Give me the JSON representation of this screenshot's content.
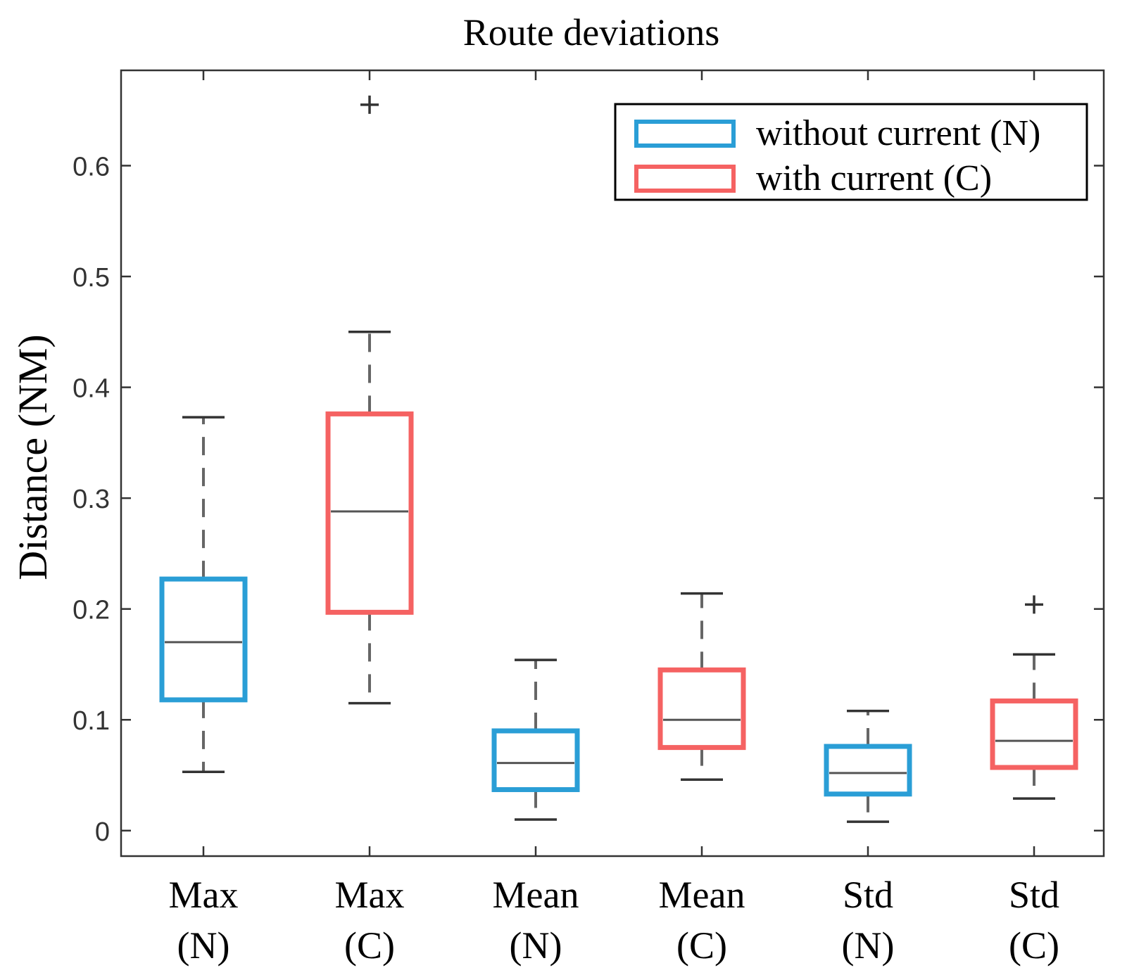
{
  "chart_data": {
    "type": "box",
    "title": "Route deviations",
    "xlabel": "",
    "ylabel": "Distance (NM)",
    "ylim": [
      -0.023,
      0.686
    ],
    "yticks": [
      0,
      0.1,
      0.2,
      0.3,
      0.4,
      0.5,
      0.6
    ],
    "ytick_labels": [
      "0",
      "0.1",
      "0.2",
      "0.3",
      "0.4",
      "0.5",
      "0.6"
    ],
    "grid": false,
    "legend_position": "top-right",
    "legend": [
      {
        "label": "without current (N)",
        "color": "#2a9ed6"
      },
      {
        "label": "with current (C)",
        "color": "#f56262"
      }
    ],
    "boxes": [
      {
        "label_top": "Max",
        "label_bottom": "(N)",
        "group": "without current (N)",
        "color": "#2a9ed6",
        "whisker_low": 0.053,
        "q1": 0.118,
        "median": 0.17,
        "q3": 0.227,
        "whisker_high": 0.373,
        "outliers": []
      },
      {
        "label_top": "Max",
        "label_bottom": "(C)",
        "group": "with current (C)",
        "color": "#f56262",
        "whisker_low": 0.115,
        "q1": 0.197,
        "median": 0.288,
        "q3": 0.376,
        "whisker_high": 0.45,
        "outliers": [
          0.655
        ]
      },
      {
        "label_top": "Mean",
        "label_bottom": "(N)",
        "group": "without current (N)",
        "color": "#2a9ed6",
        "whisker_low": 0.01,
        "q1": 0.037,
        "median": 0.061,
        "q3": 0.09,
        "whisker_high": 0.154,
        "outliers": []
      },
      {
        "label_top": "Mean",
        "label_bottom": "(C)",
        "group": "with current (C)",
        "color": "#f56262",
        "whisker_low": 0.046,
        "q1": 0.075,
        "median": 0.1,
        "q3": 0.145,
        "whisker_high": 0.214,
        "outliers": []
      },
      {
        "label_top": "Std",
        "label_bottom": "(N)",
        "group": "without current (N)",
        "color": "#2a9ed6",
        "whisker_low": 0.008,
        "q1": 0.033,
        "median": 0.052,
        "q3": 0.076,
        "whisker_high": 0.108,
        "outliers": []
      },
      {
        "label_top": "Std",
        "label_bottom": "(C)",
        "group": "with current (C)",
        "color": "#f56262",
        "whisker_low": 0.029,
        "q1": 0.057,
        "median": 0.081,
        "q3": 0.117,
        "whisker_high": 0.159,
        "outliers": [
          0.204
        ]
      }
    ]
  }
}
